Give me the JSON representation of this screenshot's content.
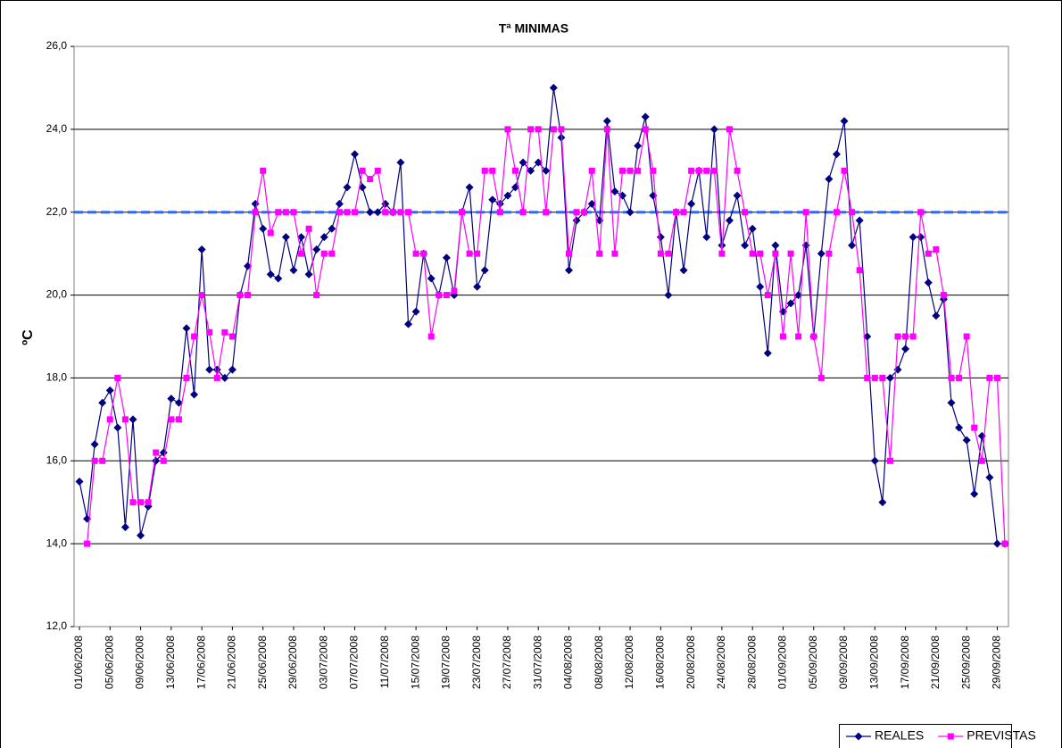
{
  "chart_data": {
    "type": "line",
    "title": "Tª MINIMAS",
    "y_label": "ºC",
    "categories": [
      "01/06/2008",
      null,
      null,
      null,
      "05/06/2008",
      null,
      null,
      null,
      "09/06/2008",
      null,
      null,
      null,
      "13/06/2008",
      null,
      null,
      null,
      "17/06/2008",
      null,
      null,
      null,
      "21/06/2008",
      null,
      null,
      null,
      "25/06/2008",
      null,
      null,
      null,
      "29/06/2008",
      null,
      null,
      null,
      "03/07/2008",
      null,
      null,
      null,
      "07/07/2008",
      null,
      null,
      null,
      "11/07/2008",
      null,
      null,
      null,
      "15/07/2008",
      null,
      null,
      null,
      "19/07/2008",
      null,
      null,
      null,
      "23/07/2008",
      null,
      null,
      null,
      "27/07/2008",
      null,
      null,
      null,
      "31/07/2008",
      null,
      null,
      null,
      "04/08/2008",
      null,
      null,
      null,
      "08/08/2008",
      null,
      null,
      null,
      "12/08/2008",
      null,
      null,
      null,
      "16/08/2008",
      null,
      null,
      null,
      "20/08/2008",
      null,
      null,
      null,
      "24/08/2008",
      null,
      null,
      null,
      "28/08/2008",
      null,
      null,
      null,
      "01/09/2008",
      null,
      null,
      null,
      "05/09/2008",
      null,
      null,
      null,
      "09/09/2008",
      null,
      null,
      null,
      "13/09/2008",
      null,
      null,
      null,
      "17/09/2008",
      null,
      null,
      null,
      "21/09/2008",
      null,
      null,
      null,
      "25/09/2008",
      null,
      null,
      null,
      "29/09/2008",
      null
    ],
    "series": [
      {
        "name": "REALES",
        "color": "#000080",
        "marker": "diamond",
        "values": [
          15.5,
          14.6,
          16.4,
          17.4,
          17.7,
          16.8,
          14.4,
          17.0,
          14.2,
          14.9,
          16.0,
          16.2,
          17.5,
          17.4,
          19.2,
          17.6,
          21.1,
          18.2,
          18.2,
          18.0,
          18.2,
          20.0,
          20.7,
          22.2,
          21.6,
          20.5,
          20.4,
          21.4,
          20.6,
          21.4,
          20.5,
          21.1,
          21.4,
          21.6,
          22.2,
          22.6,
          23.4,
          22.6,
          22.0,
          22.0,
          22.2,
          22.0,
          23.2,
          19.3,
          19.6,
          21.0,
          20.4,
          20.0,
          20.9,
          20.0,
          22.0,
          22.6,
          20.2,
          20.6,
          22.3,
          22.2,
          22.4,
          22.6,
          23.2,
          23.0,
          23.2,
          23.0,
          25.0,
          23.8,
          20.6,
          21.8,
          22.0,
          22.2,
          21.8,
          24.2,
          22.5,
          22.4,
          22.0,
          23.6,
          24.3,
          22.4,
          21.4,
          20.0,
          22.0,
          20.6,
          22.2,
          23.0,
          21.4,
          24.0,
          21.2,
          21.8,
          22.4,
          21.2,
          21.6,
          20.2,
          18.6,
          21.2,
          19.6,
          19.8,
          20.0,
          21.2,
          19.0,
          21.0,
          22.8,
          23.4,
          24.2,
          21.2,
          21.8,
          19.0,
          16.0,
          15.0,
          18.0,
          18.2,
          18.7,
          21.4,
          21.4,
          20.3,
          19.5,
          19.9,
          17.4,
          16.8,
          16.5,
          15.2,
          16.6,
          15.6,
          14.0,
          14.0
        ]
      },
      {
        "name": "PREVISTAS",
        "color": "#ff00ff",
        "marker": "square",
        "values": [
          null,
          14.0,
          16.0,
          16.0,
          17.0,
          18.0,
          17.0,
          15.0,
          15.0,
          15.0,
          16.2,
          16.0,
          17.0,
          17.0,
          18.0,
          19.0,
          20.0,
          19.1,
          18.0,
          19.1,
          19.0,
          20.0,
          20.0,
          22.0,
          23.0,
          21.5,
          22.0,
          22.0,
          22.0,
          21.0,
          21.6,
          20.0,
          21.0,
          21.0,
          22.0,
          22.0,
          22.0,
          23.0,
          22.8,
          23.0,
          22.0,
          22.0,
          22.0,
          22.0,
          21.0,
          21.0,
          19.0,
          20.0,
          20.0,
          20.1,
          22.0,
          21.0,
          21.0,
          23.0,
          23.0,
          22.0,
          24.0,
          23.0,
          22.0,
          24.0,
          24.0,
          22.0,
          24.0,
          24.0,
          21.0,
          22.0,
          22.0,
          23.0,
          21.0,
          24.0,
          21.0,
          23.0,
          23.0,
          23.0,
          24.0,
          23.0,
          21.0,
          21.0,
          22.0,
          22.0,
          23.0,
          23.0,
          23.0,
          23.0,
          21.0,
          24.0,
          23.0,
          22.0,
          21.0,
          21.0,
          20.0,
          21.0,
          19.0,
          21.0,
          19.0,
          22.0,
          19.0,
          18.0,
          21.0,
          22.0,
          23.0,
          22.0,
          20.6,
          18.0,
          18.0,
          18.0,
          16.0,
          19.0,
          19.0,
          19.0,
          22.0,
          21.0,
          21.1,
          20.0,
          18.0,
          18.0,
          19.0,
          16.8,
          16.0,
          18.0,
          18.0,
          14.0
        ]
      }
    ],
    "reference_line": {
      "value": 22,
      "color": "#3366ff"
    },
    "ylim": [
      12,
      26
    ],
    "yticks": [
      {
        "value": 12,
        "label": "12,0"
      },
      {
        "value": 14,
        "label": "14,0"
      },
      {
        "value": 16,
        "label": "16,0"
      },
      {
        "value": 18,
        "label": "18,0"
      },
      {
        "value": 20,
        "label": "20,0"
      },
      {
        "value": 22,
        "label": "22,0"
      },
      {
        "value": 24,
        "label": "24,0"
      },
      {
        "value": 26,
        "label": "26,0"
      }
    ],
    "grid": true,
    "legend": "bottom-right"
  }
}
